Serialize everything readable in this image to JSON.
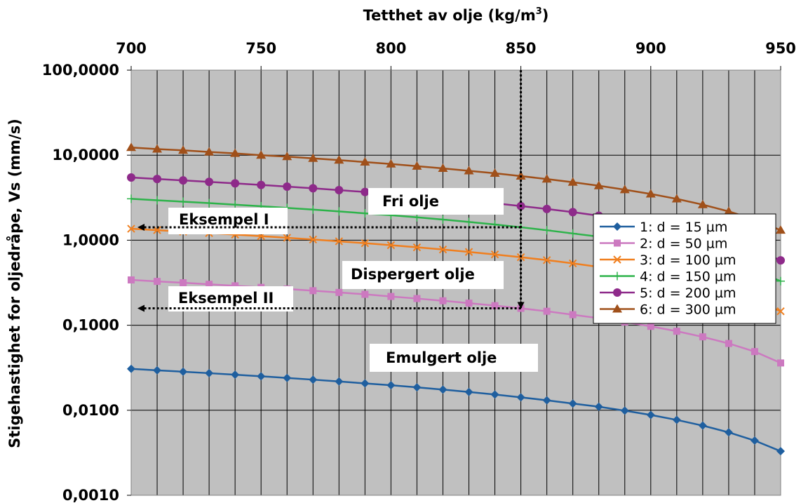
{
  "chart_data": {
    "type": "line",
    "xlabel": "Tetthet av olje (kg/m",
    "xlabel_sup": "3",
    "xlabel_end": ")",
    "ylabel": "Stigehastighet for oljedråpe, Vs (mm/s)",
    "x_axis_position": "top",
    "y_scale": "log",
    "xlim": [
      700,
      950
    ],
    "ylim": [
      0.001,
      100
    ],
    "x_ticks": [
      700,
      750,
      800,
      850,
      900,
      950
    ],
    "x_tick_labels": [
      "700",
      "750",
      "800",
      "850",
      "900",
      "950"
    ],
    "y_ticks": [
      100,
      10,
      1,
      0.1,
      0.01,
      0.001
    ],
    "y_tick_labels": [
      "100,0000",
      "10,0000",
      "1,0000",
      "0,1000",
      "0,0100",
      "0,0010"
    ],
    "x_minor_gridlines_every": 10,
    "grid": true,
    "plot_background": "#c0c0c0",
    "legend_position": "right",
    "x": [
      700,
      710,
      720,
      730,
      740,
      750,
      760,
      770,
      780,
      790,
      800,
      810,
      820,
      830,
      840,
      850,
      860,
      870,
      880,
      890,
      900,
      910,
      920,
      930,
      940,
      950
    ],
    "series": [
      {
        "name": "1: d = 15 µm",
        "color": "#1f5f9f",
        "marker": "diamond",
        "values": [
          0.0307,
          0.0295,
          0.0284,
          0.0273,
          0.0262,
          0.0251,
          0.024,
          0.0229,
          0.0218,
          0.0207,
          0.0197,
          0.0186,
          0.0175,
          0.0164,
          0.0153,
          0.0142,
          0.0131,
          0.012,
          0.011,
          0.0099,
          0.0088,
          0.0077,
          0.0066,
          0.0055,
          0.0044,
          0.0033
        ]
      },
      {
        "name": "2: d = 50 µm",
        "color": "#cc79c0",
        "marker": "square",
        "values": [
          0.341,
          0.328,
          0.316,
          0.303,
          0.291,
          0.279,
          0.267,
          0.255,
          0.243,
          0.231,
          0.218,
          0.206,
          0.194,
          0.182,
          0.17,
          0.158,
          0.146,
          0.133,
          0.121,
          0.109,
          0.097,
          0.085,
          0.073,
          0.061,
          0.049,
          0.036
        ]
      },
      {
        "name": "3: d = 100 µm",
        "color": "#f07f1f",
        "marker": "x",
        "values": [
          1.365,
          1.313,
          1.262,
          1.213,
          1.165,
          1.116,
          1.068,
          1.019,
          0.971,
          0.922,
          0.874,
          0.825,
          0.777,
          0.728,
          0.68,
          0.631,
          0.583,
          0.534,
          0.485,
          0.437,
          0.388,
          0.34,
          0.291,
          0.243,
          0.194,
          0.146
        ]
      },
      {
        "name": "4: d = 150 µm",
        "color": "#2db34a",
        "marker": "plus",
        "values": [
          3.07,
          2.95,
          2.84,
          2.73,
          2.62,
          2.51,
          2.4,
          2.29,
          2.18,
          2.07,
          1.97,
          1.86,
          1.75,
          1.64,
          1.53,
          1.42,
          1.31,
          1.2,
          1.1,
          0.99,
          0.88,
          0.77,
          0.66,
          0.55,
          0.44,
          0.33
        ]
      },
      {
        "name": "5: d = 200 µm",
        "color": "#8e2a8a",
        "marker": "circle",
        "values": [
          5.46,
          5.25,
          5.05,
          4.85,
          4.66,
          4.47,
          4.27,
          4.08,
          3.88,
          3.69,
          3.5,
          3.3,
          3.11,
          2.91,
          2.72,
          2.52,
          2.33,
          2.14,
          1.94,
          1.75,
          1.55,
          1.36,
          1.17,
          0.97,
          0.78,
          0.58
        ]
      },
      {
        "name": "6: d = 300 µm",
        "color": "#a0501a",
        "marker": "triangle",
        "values": [
          12.3,
          11.8,
          11.4,
          10.9,
          10.5,
          10.0,
          9.61,
          9.17,
          8.74,
          8.3,
          7.87,
          7.43,
          6.99,
          6.55,
          6.12,
          5.68,
          5.24,
          4.81,
          4.37,
          3.93,
          3.5,
          3.06,
          2.62,
          2.18,
          1.75,
          1.31
        ]
      }
    ],
    "annotations": {
      "fri": "Fri olje",
      "dispergert": "Dispergert olje",
      "emulgert": "Emulgert olje",
      "eks1": "Eksempel I",
      "eks2": "Eksempel II"
    },
    "example_lines": {
      "x": 850,
      "eks1_y": 1.42,
      "eks2_y": 0.158
    }
  }
}
